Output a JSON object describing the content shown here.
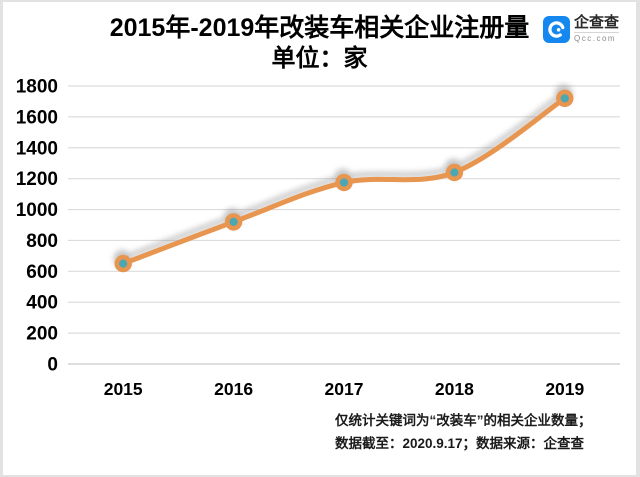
{
  "header": {
    "title": "2015年-2019年改装车相关企业注册量",
    "subtitle": "单位：家",
    "logo": {
      "name": "企查查",
      "domain": "Qcc.com",
      "icon": "qichacha-c-spiral-icon",
      "icon_color": "#1488ee"
    }
  },
  "chart_data": {
    "type": "line",
    "title": "2015年-2019年改装车相关企业注册量",
    "subtitle": "单位：家",
    "categories": [
      "2015",
      "2016",
      "2017",
      "2018",
      "2019"
    ],
    "values": [
      650,
      920,
      1175,
      1240,
      1720
    ],
    "xlabel": "",
    "ylabel": "",
    "ylim": [
      0,
      1800
    ],
    "ytick_step": 200,
    "yticks": [
      0,
      200,
      400,
      600,
      800,
      1000,
      1200,
      1400,
      1600,
      1800
    ],
    "grid": true,
    "legend_position": "none",
    "line_color": "#e8954f",
    "marker_fill": "#4ba7b3",
    "marker_ring": "#e8954f",
    "grid_color": "#dcdcdc"
  },
  "footnotes": {
    "line1": "仅统计关键词为“改装车”的相关企业数量；",
    "line2": "数据截至：2020.9.17；数据来源：企查查"
  }
}
